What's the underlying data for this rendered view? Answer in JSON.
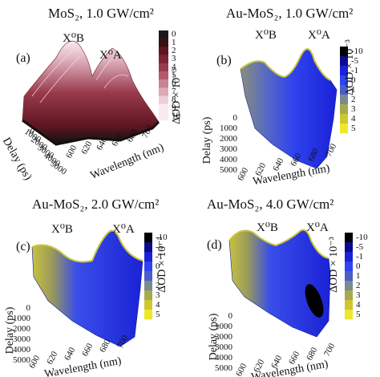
{
  "figure": {
    "colors": {
      "pink_scale": [
        "#1a1a1a",
        "#3b0f14",
        "#5e1621",
        "#7d2333",
        "#9a3a4c",
        "#b45a6c",
        "#c98394",
        "#dcaab7",
        "#ecd0d9",
        "#f8ecf0"
      ],
      "blue_yellow_scale": [
        "#000000",
        "#0b0b8c",
        "#1a22d6",
        "#2f43ee",
        "#4a5ec8",
        "#7a8a8e",
        "#a5ab4c",
        "#cfc630",
        "#eee82a",
        "#ffff33"
      ]
    }
  },
  "chart_data": [
    {
      "type": "surface3d",
      "panel_label": "(a)",
      "title": "MoS₂, 1.0 GW/cm²",
      "peak_labels": [
        "X⁰B",
        "X⁰A"
      ],
      "xlabel": "Wavelength (nm)",
      "ylabel": "Delay (ps)",
      "x_ticks": [
        "600",
        "620",
        "640",
        "660",
        "680",
        "700"
      ],
      "y_ticks": [
        "0",
        "1000",
        "2000",
        "3000",
        "4000",
        "5000"
      ],
      "colorbar_label": "ΔOD × 10⁻³",
      "colorbar_ticks": [
        "0",
        "1",
        "2",
        "3",
        "4",
        "5",
        "6",
        "7",
        "8",
        "9",
        "10"
      ],
      "peaks": [
        {
          "label": "X⁰B",
          "wavelength_nm": 612,
          "max_dOD": 10
        },
        {
          "label": "X⁰A",
          "wavelength_nm": 658,
          "max_dOD": 9
        }
      ]
    },
    {
      "type": "surface3d",
      "panel_label": "(b)",
      "title": "Au-MoS₂, 1.0 GW/cm²",
      "peak_labels": [
        "X⁰B",
        "X⁰A"
      ],
      "xlabel": "Wavelength (nm)",
      "ylabel": "Delay (ps)",
      "x_ticks": [
        "600",
        "620",
        "640",
        "660",
        "680",
        "700"
      ],
      "y_ticks": [
        "0",
        "1000",
        "2000",
        "3000",
        "4000",
        "5000"
      ],
      "colorbar_label": "ΔOD × 10⁻³",
      "colorbar_ticks": [
        "-10",
        "-5",
        "-1",
        "0",
        "1",
        "2",
        "3",
        "4",
        "5"
      ]
    },
    {
      "type": "surface3d",
      "panel_label": "(c)",
      "title": "Au-MoS₂, 2.0 GW/cm²",
      "peak_labels": [
        "X⁰B",
        "X⁰A"
      ],
      "xlabel": "Wavelength (nm)",
      "ylabel": "Delay (ps)",
      "x_ticks": [
        "600",
        "620",
        "640",
        "660",
        "680",
        "700"
      ],
      "y_ticks": [
        "0",
        "1000",
        "2000",
        "3000",
        "4000",
        "5000"
      ],
      "colorbar_label": "ΔOD × 10⁻³",
      "colorbar_ticks": [
        "-10",
        "-5",
        "-1",
        "0",
        "1",
        "2",
        "3",
        "4",
        "5"
      ]
    },
    {
      "type": "surface3d",
      "panel_label": "(d)",
      "title": "Au-MoS₂, 4.0 GW/cm²",
      "peak_labels": [
        "X⁰B",
        "X⁰A"
      ],
      "xlabel": "Wavelength (nm)",
      "ylabel": "Delay (ps)",
      "x_ticks": [
        "600",
        "620",
        "640",
        "660",
        "680",
        "700"
      ],
      "y_ticks": [
        "0",
        "1000",
        "2000",
        "3000",
        "4000",
        "5000"
      ],
      "colorbar_label": "ΔOD × 10⁻³",
      "colorbar_ticks": [
        "-10",
        "-5",
        "-1",
        "0",
        "1",
        "2",
        "3",
        "4",
        "5"
      ]
    }
  ]
}
